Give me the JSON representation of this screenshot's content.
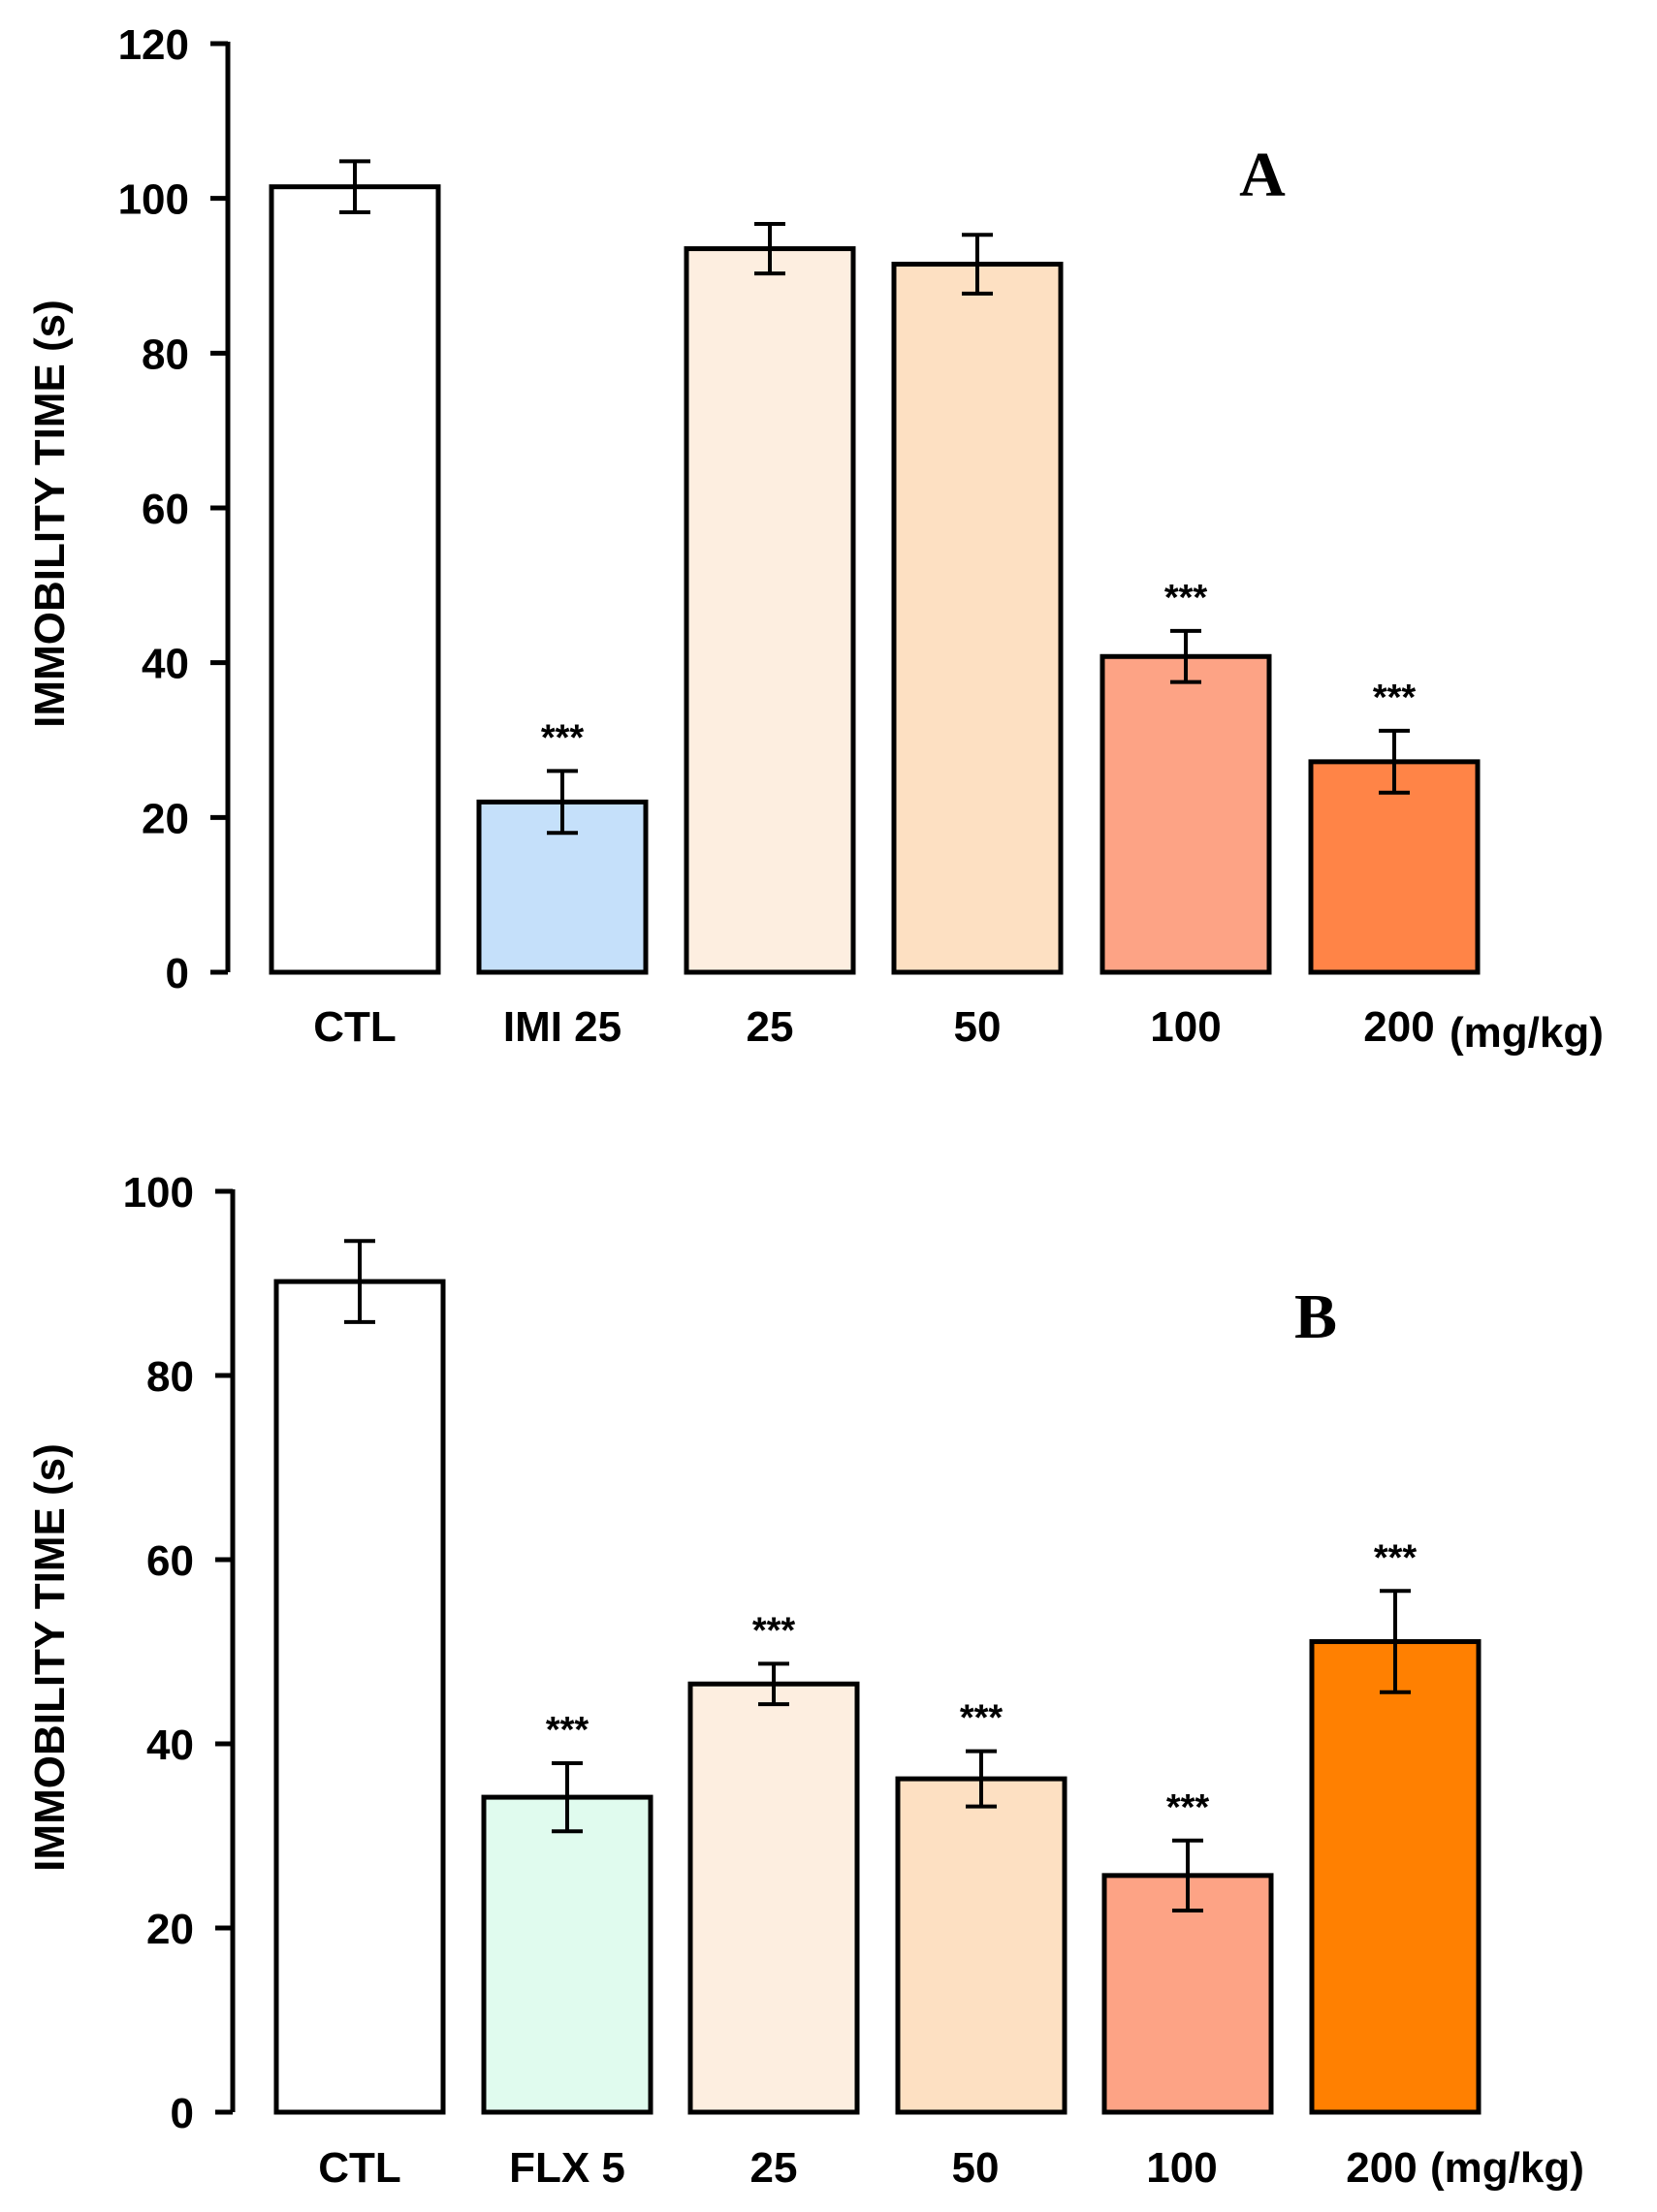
{
  "chart_data": [
    {
      "type": "bar",
      "panel_label": "A",
      "ylabel": "IMMOBILITY TIME (s)",
      "xlabel": "",
      "ylim": [
        0,
        120
      ],
      "yticks": [
        "0",
        "20",
        "40",
        "60",
        "80",
        "100",
        "120"
      ],
      "unit_label": "(mg/kg)",
      "categories": [
        "CTL",
        "IMI 25",
        "25",
        "50",
        "100",
        "200"
      ],
      "values": [
        101.5,
        22,
        93.5,
        91.5,
        40.8,
        27.2
      ],
      "errors": [
        3.3,
        4,
        3.2,
        3.8,
        3.3,
        4
      ],
      "significance": [
        "",
        "***",
        "",
        "",
        "***",
        "***"
      ],
      "colors": [
        "#ffffff",
        "#c5e0fa",
        "#fdeee0",
        "#fde0c2",
        "#fda385",
        "#ff8447"
      ]
    },
    {
      "type": "bar",
      "panel_label": "B",
      "ylabel": "IMMOBILITY TIME (s)",
      "xlabel": "",
      "ylim": [
        0,
        100
      ],
      "yticks": [
        "0",
        "20",
        "40",
        "60",
        "80",
        "100"
      ],
      "unit_label": "(mg/kg)",
      "categories": [
        "CTL",
        "FLX 5",
        "25",
        "50",
        "100",
        "200"
      ],
      "values": [
        90.2,
        34.2,
        46.5,
        36.2,
        25.7,
        51.1
      ],
      "errors": [
        4.4,
        3.7,
        2.2,
        3,
        3.8,
        5.5
      ],
      "significance": [
        "",
        "***",
        "***",
        "***",
        "***",
        "***"
      ],
      "colors": [
        "#ffffff",
        "#e0fbee",
        "#fdeee0",
        "#fde0c2",
        "#fda385",
        "#ff8001"
      ]
    }
  ]
}
